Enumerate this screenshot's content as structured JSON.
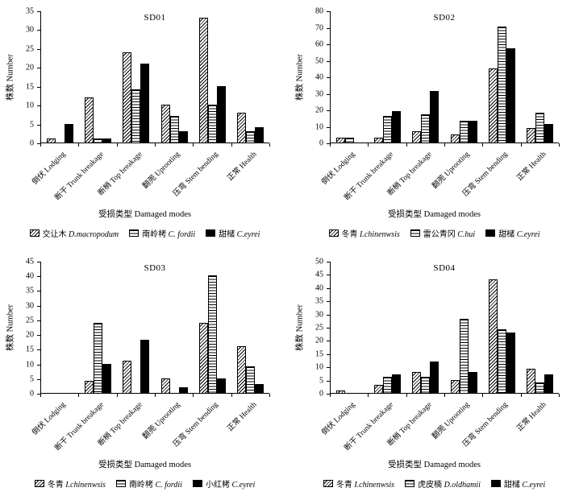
{
  "figure": {
    "background": "#ffffff",
    "ink": "#000000"
  },
  "chart_data": [
    {
      "type": "bar",
      "title": "SD01",
      "ylabel": "株数 Number",
      "xlabel": "受损类型 Damaged modes",
      "ylim": [
        0,
        35
      ],
      "yticks": [
        0,
        5,
        10,
        15,
        20,
        25,
        30,
        35
      ],
      "grid": false,
      "legend_position": "bottom",
      "categories": [
        "倒伏 Lodging",
        "断干 Trunk breakage",
        "断梢 Top breakage",
        "翻蔸 Uprooting",
        "压弯 Stem bending",
        "正常 Health"
      ],
      "series": [
        {
          "label_cn": "交让木",
          "label_latin": "D.macropodum",
          "pattern": "diagonal",
          "values": [
            1,
            12,
            24,
            10,
            33,
            8
          ]
        },
        {
          "label_cn": "南岭栲",
          "label_latin": "C. fordii",
          "pattern": "horizontal",
          "values": [
            0,
            1,
            14,
            7,
            10,
            3
          ]
        },
        {
          "label_cn": "甜槠",
          "label_latin": "C.eyrei",
          "pattern": "solid",
          "values": [
            5,
            1,
            21,
            3,
            15,
            4
          ]
        }
      ]
    },
    {
      "type": "bar",
      "title": "SD02",
      "ylabel": "株数 Number",
      "xlabel": "受损类型 Damaged modes",
      "ylim": [
        0,
        80
      ],
      "yticks": [
        0,
        10,
        20,
        30,
        40,
        50,
        60,
        70,
        80
      ],
      "grid": false,
      "legend_position": "bottom",
      "categories": [
        "倒伏 Lodging",
        "断干 Trunk breakage",
        "断梢 Top breakage",
        "翻蔸 Uprooting",
        "压弯 Stem bending",
        "正常 Health"
      ],
      "series": [
        {
          "label_cn": "冬青",
          "label_latin": "I.chinenwsis",
          "pattern": "diagonal",
          "values": [
            3,
            3,
            7,
            5,
            45,
            9
          ]
        },
        {
          "label_cn": "雷公青冈",
          "label_latin": "C.hui",
          "pattern": "horizontal",
          "values": [
            3,
            16,
            17,
            13,
            70,
            18
          ]
        },
        {
          "label_cn": "甜槠",
          "label_latin": "C.eyrei",
          "pattern": "solid",
          "values": [
            0,
            19,
            31,
            13,
            57,
            11
          ]
        }
      ]
    },
    {
      "type": "bar",
      "title": "SD03",
      "ylabel": "株数 Number",
      "xlabel": "受损类型 Damaged modes",
      "ylim": [
        0,
        45
      ],
      "yticks": [
        0,
        5,
        10,
        15,
        20,
        25,
        30,
        35,
        40,
        45
      ],
      "grid": false,
      "legend_position": "bottom",
      "categories": [
        "倒伏 Lodging",
        "断干 Trunk breakage",
        "断梢 Top breakage",
        "翻蔸 Uprooting",
        "压弯 Stem bending",
        "正常 Health"
      ],
      "series": [
        {
          "label_cn": "冬青",
          "label_latin": "I.chinenwsis",
          "pattern": "diagonal",
          "values": [
            0,
            4,
            11,
            5,
            24,
            16
          ]
        },
        {
          "label_cn": "南岭栲",
          "label_latin": "C. fordii",
          "pattern": "horizontal",
          "values": [
            0,
            24,
            0,
            0,
            40,
            9
          ]
        },
        {
          "label_cn": "小红栲",
          "label_latin": "C.eyrei",
          "pattern": "solid",
          "values": [
            0,
            10,
            18,
            2,
            5,
            3
          ]
        }
      ]
    },
    {
      "type": "bar",
      "title": "SD04",
      "ylabel": "株数 Number",
      "xlabel": "受损类型 Damaged modes",
      "ylim": [
        0,
        50
      ],
      "yticks": [
        0,
        5,
        10,
        15,
        20,
        25,
        30,
        35,
        40,
        45,
        50
      ],
      "grid": false,
      "legend_position": "bottom",
      "categories": [
        "倒伏 Lodging",
        "断干 Trunk breakage",
        "断梢 Top breakage",
        "翻蔸 Uprooting",
        "压弯 Stem bending",
        "正常 Health"
      ],
      "series": [
        {
          "label_cn": "冬青",
          "label_latin": "I.chinenwsis",
          "pattern": "diagonal",
          "values": [
            1,
            3,
            8,
            5,
            43,
            9
          ]
        },
        {
          "label_cn": "虎皮楠",
          "label_latin": "D.oldhamii",
          "pattern": "horizontal",
          "values": [
            0,
            6,
            6,
            28,
            24,
            4
          ]
        },
        {
          "label_cn": "甜槠",
          "label_latin": "C.eyrei",
          "pattern": "solid",
          "values": [
            0,
            7,
            12,
            8,
            23,
            7
          ]
        }
      ]
    }
  ]
}
